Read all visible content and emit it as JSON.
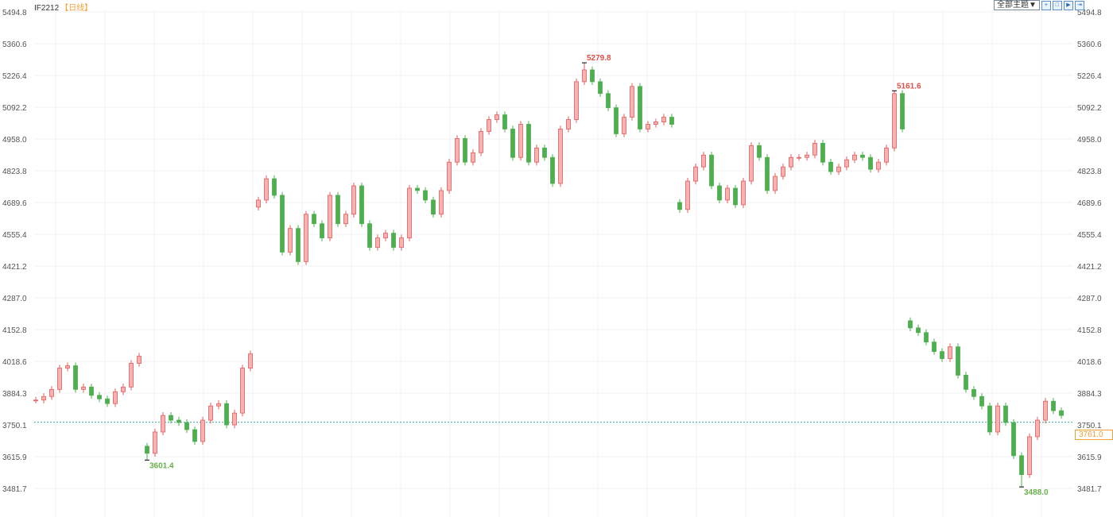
{
  "header": {
    "symbol": "IF2212",
    "period": "【日线】",
    "theme_select": "全部主题▼",
    "tool_icons": [
      "crosshair-icon",
      "fit-icon",
      "play-icon",
      "forward-icon"
    ]
  },
  "chart_data": {
    "type": "candlestick",
    "y_ticks": [
      "5494.8",
      "5360.6",
      "5226.4",
      "5092.2",
      "4958.0",
      "4823.8",
      "4689.6",
      "4555.4",
      "4421.2",
      "4287.0",
      "4152.8",
      "4018.6",
      "3884.3",
      "3750.1",
      "3615.9",
      "3481.7"
    ],
    "ylim": [
      3481.7,
      5494.8
    ],
    "grid": true,
    "colors": {
      "up": "#e25c5c",
      "up_fill": "#f4b4b4",
      "down": "#4fae4f",
      "last": "#f0a030",
      "last_line": "#2aa39a"
    },
    "closes": [
      3855,
      3870,
      3900,
      3990,
      4000,
      3900,
      3910,
      3875,
      3860,
      3840,
      3890,
      3910,
      4010,
      4040,
      3630,
      3720,
      3790,
      3770,
      3760,
      3730,
      3680,
      3770,
      3830,
      3840,
      3750,
      3800,
      3990,
      4050,
      4700,
      4790,
      4720,
      4480,
      4580,
      4440,
      4640,
      4600,
      4540,
      4720,
      4600,
      4640,
      4760,
      4600,
      4500,
      4540,
      4560,
      4500,
      4540,
      4750,
      4740,
      4700,
      4640,
      4740,
      4860,
      4960,
      4860,
      4900,
      4990,
      5040,
      5060,
      5000,
      4880,
      5020,
      4860,
      4920,
      4880,
      4770,
      5000,
      5040,
      5200,
      5250,
      5200,
      5150,
      5090,
      4980,
      5050,
      5180,
      5000,
      5020,
      5030,
      5050,
      5020,
      4660,
      4780,
      4840,
      4890,
      4760,
      4700,
      4750,
      4680,
      4780,
      4930,
      4880,
      4740,
      4800,
      4840,
      4880,
      4880,
      4890,
      4940,
      4860,
      4820,
      4840,
      4870,
      4890,
      4880,
      4830,
      4860,
      4920,
      5150,
      5000,
      4160,
      4140,
      4100,
      4060,
      4030,
      4080,
      3960,
      3900,
      3870,
      3830,
      3720,
      3830,
      3760,
      3620,
      3540,
      3700,
      3770,
      3850,
      3810,
      3790
    ],
    "extremes": [
      {
        "index": 69,
        "kind": "high",
        "value": 5279.8,
        "label": "5279.8"
      },
      {
        "index": 108,
        "kind": "high",
        "value": 5161.6,
        "label": "5161.6"
      },
      {
        "index": 14,
        "kind": "low",
        "value": 3601.4,
        "label": "3601.4"
      },
      {
        "index": 124,
        "kind": "low",
        "value": 3488.0,
        "label": "3488.0"
      }
    ],
    "last_price": 3761.0,
    "last_price_label": "3761.0"
  }
}
